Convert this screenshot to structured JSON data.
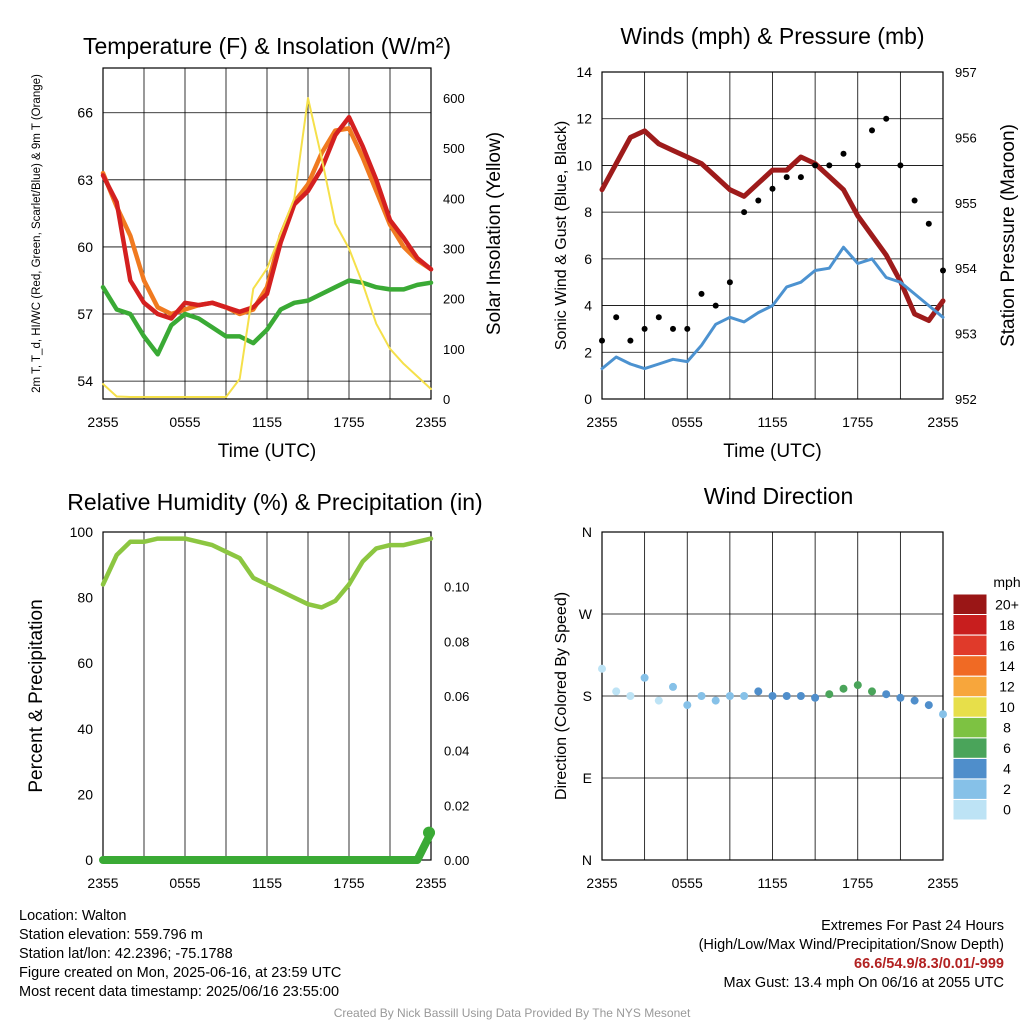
{
  "colors": {
    "t2m": "#d42020",
    "td": "#3aaa35",
    "hiwc": "#b01010",
    "t9m": "#f07a20",
    "solar": "#f5e04a",
    "sonic_wind": "#4c92d0",
    "gust": "#000000",
    "pressure": "#9e1b1b",
    "rh": "#8cc641",
    "precip": "#3aaa35",
    "extremes": "#b22222"
  },
  "chart_data": [
    {
      "id": "temp",
      "type": "line",
      "title": "Temperature (F) & Insolation (W/m²)",
      "xlabel": "Time (UTC)",
      "ylabel": "2m T, T_d, HI/WC (Red, Green, Scarlet/Blue) & 9m T (Orange)",
      "ylabel_right": "Solar Insolation (Yellow)",
      "x_ticks": [
        "2355",
        "0555",
        "1155",
        "1755",
        "2355"
      ],
      "y_ticks": [
        54,
        57,
        60,
        63,
        66
      ],
      "y_ticks_right": [
        0,
        100,
        200,
        300,
        400,
        500,
        600
      ],
      "ylim": [
        53.2,
        68
      ],
      "ylim_right": [
        0,
        660
      ],
      "x_hours": [
        0,
        1,
        2,
        3,
        4,
        5,
        6,
        7,
        8,
        9,
        10,
        11,
        12,
        13,
        14,
        15,
        16,
        17,
        18,
        19,
        20,
        21,
        22,
        23,
        24
      ],
      "series": [
        {
          "key": "t9m",
          "axis": "left",
          "values": [
            63.3,
            61.8,
            60.5,
            58.5,
            57.3,
            57.0,
            57.2,
            57.4,
            57.5,
            57.3,
            57.0,
            57.2,
            58.2,
            60.5,
            62.0,
            62.8,
            64.2,
            65.2,
            65.3,
            64.0,
            62.5,
            61.0,
            60.0,
            59.4,
            59.0
          ]
        },
        {
          "key": "t2m",
          "axis": "left",
          "values": [
            63.2,
            62.0,
            58.5,
            57.5,
            57.0,
            56.8,
            57.5,
            57.4,
            57.5,
            57.3,
            57.1,
            57.3,
            57.9,
            60.2,
            61.9,
            62.5,
            63.5,
            65.0,
            65.8,
            64.5,
            63.0,
            61.2,
            60.4,
            59.5,
            59.0
          ]
        },
        {
          "key": "td",
          "axis": "left",
          "values": [
            58.2,
            57.2,
            57.0,
            56.0,
            55.2,
            56.5,
            57.0,
            56.8,
            56.4,
            56.0,
            56.0,
            55.7,
            56.3,
            57.2,
            57.5,
            57.6,
            57.9,
            58.2,
            58.5,
            58.4,
            58.2,
            58.1,
            58.1,
            58.3,
            58.4
          ]
        },
        {
          "key": "solar",
          "axis": "right",
          "values": [
            30,
            5,
            4,
            4,
            4,
            4,
            4,
            4,
            4,
            4,
            40,
            220,
            260,
            330,
            400,
            600,
            480,
            350,
            300,
            230,
            150,
            100,
            70,
            45,
            20
          ]
        }
      ]
    },
    {
      "id": "wind",
      "type": "line",
      "title": "Winds (mph) & Pressure (mb)",
      "xlabel": "Time (UTC)",
      "ylabel": "Sonic Wind & Gust (Blue, Black)",
      "ylabel_right": "Station Pressure (Maroon)",
      "x_ticks": [
        "2355",
        "0555",
        "1155",
        "1755",
        "2355"
      ],
      "y_ticks": [
        0,
        2,
        4,
        6,
        8,
        10,
        12,
        14
      ],
      "y_ticks_right": [
        952,
        953,
        954,
        955,
        956,
        957
      ],
      "ylim": [
        0,
        14
      ],
      "ylim_right": [
        952,
        957
      ],
      "x_hours": [
        0,
        1,
        2,
        3,
        4,
        5,
        6,
        7,
        8,
        9,
        10,
        11,
        12,
        13,
        14,
        15,
        16,
        17,
        18,
        19,
        20,
        21,
        22,
        23,
        24
      ],
      "series": [
        {
          "key": "pressure",
          "axis": "right",
          "values": [
            955.2,
            955.6,
            956.0,
            956.1,
            955.9,
            955.8,
            955.7,
            955.6,
            955.4,
            955.2,
            955.1,
            955.3,
            955.5,
            955.5,
            955.7,
            955.6,
            955.4,
            955.2,
            954.8,
            954.5,
            954.2,
            953.8,
            953.3,
            953.2,
            953.5
          ]
        },
        {
          "key": "sonic_wind",
          "axis": "left",
          "values": [
            1.3,
            1.8,
            1.5,
            1.3,
            1.5,
            1.7,
            1.6,
            2.3,
            3.2,
            3.5,
            3.3,
            3.7,
            4.0,
            4.8,
            5.0,
            5.5,
            5.6,
            6.5,
            5.8,
            6.0,
            5.2,
            5.0,
            4.5,
            4.0,
            3.5
          ]
        },
        {
          "key": "gust",
          "axis": "left",
          "values": [
            2.5,
            3.5,
            2.5,
            3.0,
            3.5,
            3.0,
            3.0,
            4.5,
            4.0,
            5.0,
            8.0,
            8.5,
            9.0,
            9.5,
            9.5,
            10.0,
            10.0,
            10.5,
            10.0,
            11.5,
            12.0,
            10.0,
            8.5,
            7.5,
            5.5
          ]
        }
      ]
    },
    {
      "id": "rh",
      "type": "line",
      "title": "Relative Humidity (%) & Precipitation (in)",
      "ylabel": "Percent & Precipitation",
      "x_ticks": [
        "2355",
        "0555",
        "1155",
        "1755",
        "2355"
      ],
      "y_ticks": [
        0,
        20,
        40,
        60,
        80,
        100
      ],
      "y_ticks_right": [
        "0.00",
        "0.02",
        "0.04",
        "0.06",
        "0.08",
        "0.10"
      ],
      "ylim": [
        0,
        100
      ],
      "ylim_right": [
        0,
        0.12
      ],
      "x_hours": [
        0,
        1,
        2,
        3,
        4,
        5,
        6,
        7,
        8,
        9,
        10,
        11,
        12,
        13,
        14,
        15,
        16,
        17,
        18,
        19,
        20,
        21,
        22,
        23,
        24
      ],
      "series": [
        {
          "key": "rh",
          "axis": "left",
          "values": [
            84,
            93,
            97,
            97,
            98,
            98,
            98,
            97,
            96,
            94,
            92,
            86,
            84,
            82,
            80,
            78,
            77,
            79,
            84,
            91,
            95,
            96,
            96,
            97,
            98
          ]
        },
        {
          "key": "precip",
          "axis": "right",
          "values": [
            0,
            0,
            0,
            0,
            0,
            0,
            0,
            0,
            0,
            0,
            0,
            0,
            0,
            0,
            0,
            0,
            0,
            0,
            0,
            0,
            0,
            0,
            0,
            0,
            0.01
          ]
        }
      ]
    },
    {
      "id": "dir",
      "type": "scatter",
      "title": "Wind Direction",
      "ylabel": "Direction (Colored By Speed)",
      "x_ticks": [
        "2355",
        "0555",
        "1155",
        "1755",
        "2355"
      ],
      "y_ticks": [
        "N",
        "E",
        "S",
        "W",
        "N"
      ],
      "ylim": [
        0,
        360
      ],
      "legend_title": "mph",
      "legend_labels": [
        "0",
        "2",
        "4",
        "6",
        "8",
        "10",
        "12",
        "14",
        "16",
        "18",
        "20+"
      ],
      "legend_colors": [
        "#bde3f5",
        "#86c1e8",
        "#4f8ecb",
        "#4aa45a",
        "#7dc242",
        "#e7df4a",
        "#f7a63c",
        "#f06a24",
        "#e03a2a",
        "#c81e1e",
        "#9a1616"
      ],
      "x_hours": [
        0,
        1,
        2,
        3,
        4,
        5,
        6,
        7,
        8,
        9,
        10,
        11,
        12,
        13,
        14,
        15,
        16,
        17,
        18,
        19,
        20,
        21,
        22,
        23,
        24
      ],
      "direction_deg": [
        210,
        185,
        180,
        200,
        175,
        190,
        170,
        180,
        175,
        180,
        180,
        185,
        180,
        180,
        180,
        178,
        182,
        188,
        192,
        185,
        182,
        178,
        175,
        170,
        160
      ],
      "speed_mph": [
        1,
        1,
        1,
        2,
        1,
        2,
        2,
        2,
        3,
        3,
        3,
        4,
        4,
        5,
        5,
        5,
        6,
        7,
        6,
        6,
        5,
        5,
        4,
        4,
        3
      ]
    }
  ],
  "info": {
    "location": "Location: Walton",
    "elevation": "Station elevation: 559.796 m",
    "latlon": "Station lat/lon: 42.2396; -75.1788",
    "created": "Figure created on Mon, 2025-06-16, at 23:59 UTC",
    "recent": "Most recent data timestamp: 2025/06/16 23:55:00"
  },
  "extremes": {
    "title": "Extremes For Past 24 Hours",
    "subtitle": "(High/Low/Max Wind/Precipitation/Snow Depth)",
    "values": "66.6/54.9/8.3/0.01/-999",
    "gust": "Max Gust: 13.4 mph On 06/16 at 2055 UTC"
  },
  "credit": "Created By Nick Bassill Using Data Provided By The NYS Mesonet"
}
